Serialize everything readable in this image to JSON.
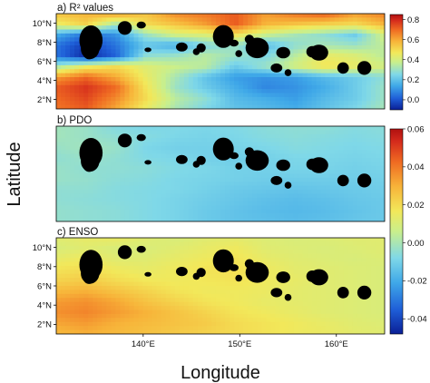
{
  "figure": {
    "xlabel": "Longitude",
    "ylabel": "Latitude",
    "lon_ticks": [
      "140°E",
      "150°E",
      "160°E"
    ],
    "lat_ticks": [
      "2°N",
      "4°N",
      "6°N",
      "8°N",
      "10°N"
    ]
  },
  "chart_data": [
    {
      "type": "heatmap",
      "title": "a) R² values",
      "xlim": [
        131,
        165
      ],
      "ylim": [
        1,
        11
      ],
      "colorbar": {
        "range": [
          -0.1,
          0.85
        ],
        "ticks": [
          "0.8",
          "0.6",
          "0.4",
          "0.2",
          "0.0"
        ]
      },
      "x": [
        131,
        134,
        137,
        140,
        143,
        146,
        149,
        152,
        155,
        158,
        161,
        164
      ],
      "y": [
        10.5,
        9.5,
        8.5,
        7.5,
        6.5,
        5.5,
        4.5,
        3.5,
        2.5,
        1.5
      ],
      "values": [
        [
          0.55,
          0.58,
          0.62,
          0.55,
          0.65,
          0.68,
          0.72,
          0.62,
          0.68,
          0.72,
          0.62,
          0.66
        ],
        [
          0.45,
          0.52,
          0.32,
          0.5,
          0.55,
          0.62,
          0.72,
          0.58,
          0.55,
          0.52,
          0.5,
          0.58
        ],
        [
          0.15,
          0.05,
          0.1,
          0.3,
          0.4,
          0.42,
          0.48,
          0.38,
          0.32,
          0.28,
          0.22,
          0.4
        ],
        [
          0.05,
          -0.05,
          0.05,
          0.2,
          0.15,
          0.25,
          0.3,
          0.18,
          0.28,
          0.32,
          0.3,
          0.36
        ],
        [
          0.05,
          -0.08,
          0.02,
          0.28,
          0.3,
          0.35,
          0.3,
          0.25,
          0.35,
          0.45,
          0.42,
          0.35
        ],
        [
          0.32,
          0.45,
          0.5,
          0.42,
          0.38,
          0.35,
          0.22,
          0.3,
          0.4,
          0.48,
          0.45,
          0.4
        ],
        [
          0.62,
          0.7,
          0.6,
          0.45,
          0.32,
          0.2,
          0.12,
          0.1,
          0.12,
          0.18,
          0.22,
          0.28
        ],
        [
          0.72,
          0.78,
          0.7,
          0.48,
          0.3,
          0.22,
          0.15,
          0.08,
          0.1,
          0.15,
          0.22,
          0.3
        ],
        [
          0.7,
          0.75,
          0.65,
          0.5,
          0.35,
          0.28,
          0.18,
          0.15,
          0.12,
          0.18,
          0.22,
          0.3
        ],
        [
          0.68,
          0.72,
          0.6,
          0.45,
          0.32,
          0.25,
          0.2,
          0.18,
          0.15,
          0.2,
          0.25,
          0.32
        ]
      ]
    },
    {
      "type": "heatmap",
      "title": "b) PDO",
      "xlim": [
        131,
        165
      ],
      "ylim": [
        1,
        11
      ],
      "colorbar": {
        "range": [
          -0.06,
          0.06
        ],
        "ticks": [
          "0.06",
          "0.04",
          "0.02",
          "0.00"
        ]
      },
      "x": [
        131,
        134,
        137,
        140,
        143,
        146,
        149,
        152,
        155,
        158,
        161,
        164
      ],
      "y": [
        10.5,
        9.5,
        8.5,
        7.5,
        6.5,
        5.5,
        4.5,
        3.5,
        2.5,
        1.5
      ],
      "values": [
        [
          -0.008,
          -0.01,
          -0.015,
          -0.016,
          -0.015,
          -0.016,
          -0.015,
          -0.013,
          -0.012,
          -0.012,
          -0.014,
          -0.013
        ],
        [
          -0.008,
          -0.01,
          -0.012,
          -0.014,
          -0.016,
          -0.017,
          -0.016,
          -0.014,
          -0.013,
          -0.014,
          -0.015,
          -0.014
        ],
        [
          -0.01,
          -0.008,
          -0.01,
          -0.016,
          -0.018,
          -0.018,
          -0.017,
          -0.016,
          -0.014,
          -0.015,
          -0.016,
          -0.015
        ],
        [
          -0.012,
          -0.01,
          -0.012,
          -0.015,
          -0.016,
          -0.018,
          -0.019,
          -0.018,
          -0.016,
          -0.016,
          -0.017,
          -0.016
        ],
        [
          -0.01,
          -0.012,
          -0.012,
          -0.013,
          -0.015,
          -0.016,
          -0.018,
          -0.018,
          -0.017,
          -0.017,
          -0.018,
          -0.017
        ],
        [
          -0.01,
          -0.011,
          -0.013,
          -0.014,
          -0.016,
          -0.017,
          -0.018,
          -0.019,
          -0.019,
          -0.019,
          -0.019,
          -0.018
        ],
        [
          -0.012,
          -0.012,
          -0.014,
          -0.015,
          -0.016,
          -0.018,
          -0.02,
          -0.021,
          -0.022,
          -0.021,
          -0.02,
          -0.019
        ],
        [
          -0.012,
          -0.013,
          -0.014,
          -0.015,
          -0.017,
          -0.019,
          -0.021,
          -0.023,
          -0.024,
          -0.023,
          -0.021,
          -0.02
        ],
        [
          -0.011,
          -0.012,
          -0.013,
          -0.015,
          -0.017,
          -0.02,
          -0.022,
          -0.024,
          -0.025,
          -0.024,
          -0.022,
          -0.02
        ],
        [
          -0.011,
          -0.012,
          -0.013,
          -0.015,
          -0.017,
          -0.02,
          -0.022,
          -0.023,
          -0.024,
          -0.023,
          -0.021,
          -0.02
        ]
      ]
    },
    {
      "type": "heatmap",
      "title": "c) ENSO",
      "xlim": [
        131,
        165
      ],
      "ylim": [
        1,
        11
      ],
      "colorbar": {
        "range": [
          -0.048,
          0.06
        ],
        "ticks": [
          "-0.02",
          "-0.04"
        ]
      },
      "x": [
        131,
        134,
        137,
        140,
        143,
        146,
        149,
        152,
        155,
        158,
        161,
        164
      ],
      "y": [
        10.5,
        9.5,
        8.5,
        7.5,
        6.5,
        5.5,
        4.5,
        3.5,
        2.5,
        1.5
      ],
      "values": [
        [
          0.012,
          0.014,
          0.015,
          0.012,
          0.01,
          0.012,
          0.013,
          0.011,
          0.01,
          0.011,
          0.012,
          0.012
        ],
        [
          0.01,
          0.012,
          0.01,
          0.01,
          0.012,
          0.014,
          0.016,
          0.012,
          0.011,
          0.01,
          0.011,
          0.012
        ],
        [
          0.014,
          0.016,
          0.012,
          0.012,
          0.014,
          0.016,
          0.018,
          0.014,
          0.012,
          0.011,
          0.01,
          0.011
        ],
        [
          0.018,
          0.02,
          0.016,
          0.014,
          0.016,
          0.018,
          0.019,
          0.016,
          0.013,
          0.012,
          0.011,
          0.01
        ],
        [
          0.022,
          0.024,
          0.02,
          0.017,
          0.016,
          0.017,
          0.018,
          0.016,
          0.014,
          0.012,
          0.011,
          0.01
        ],
        [
          0.028,
          0.03,
          0.026,
          0.022,
          0.018,
          0.016,
          0.016,
          0.015,
          0.013,
          0.012,
          0.011,
          0.01
        ],
        [
          0.034,
          0.036,
          0.032,
          0.026,
          0.022,
          0.018,
          0.016,
          0.014,
          0.013,
          0.012,
          0.011,
          0.01
        ],
        [
          0.036,
          0.038,
          0.034,
          0.03,
          0.026,
          0.022,
          0.018,
          0.016,
          0.014,
          0.012,
          0.011,
          0.01
        ],
        [
          0.032,
          0.034,
          0.03,
          0.028,
          0.026,
          0.024,
          0.02,
          0.018,
          0.016,
          0.014,
          0.012,
          0.011
        ],
        [
          0.028,
          0.03,
          0.028,
          0.026,
          0.024,
          0.022,
          0.02,
          0.018,
          0.016,
          0.015,
          0.013,
          0.012
        ]
      ]
    }
  ]
}
